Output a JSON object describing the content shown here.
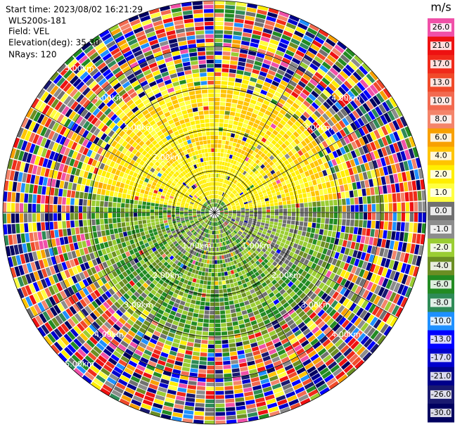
{
  "info": {
    "start_time": "Start time: 2023/08/02 16:21:29",
    "station": "WLS200s-181",
    "field": "Field: VEL",
    "elevation": "Elevation(deg): 35.30",
    "nrays": "NRays: 120"
  },
  "range_labels": [
    "5.00km",
    "4.00km",
    "3.00km",
    "2.00km",
    "4.00km",
    "3.00km",
    "1.00km",
    "2.00km",
    "3.00km",
    "4.00km",
    "5.00km",
    "1.00km",
    "2.00km",
    "3.00km",
    "4.00km"
  ],
  "colorbar": {
    "title": "m/s",
    "levels": [
      {
        "label": "26.0",
        "color": "#f050a8"
      },
      {
        "label": "21.0",
        "color": "#ee1111"
      },
      {
        "label": "17.0",
        "color": "#f02a1a"
      },
      {
        "label": "13.0",
        "color": "#f04a2a"
      },
      {
        "label": "10.0",
        "color": "#f26a50"
      },
      {
        "label": "8.0",
        "color": "#f4846a"
      },
      {
        "label": "6.0",
        "color": "#f8a000"
      },
      {
        "label": "4.0",
        "color": "#ffc400"
      },
      {
        "label": "2.0",
        "color": "#ffee00"
      },
      {
        "label": "1.0",
        "color": "#ffff40"
      },
      {
        "label": "0.0",
        "color": "#707070"
      },
      {
        "label": "-1.0",
        "color": "#8c8c8c"
      },
      {
        "label": "-2.0",
        "color": "#9acd32"
      },
      {
        "label": "-4.0",
        "color": "#6b8e23"
      },
      {
        "label": "-6.0",
        "color": "#228b22"
      },
      {
        "label": "-8.0",
        "color": "#2e8b57"
      },
      {
        "label": "-10.0",
        "color": "#1e90ff"
      },
      {
        "label": "-13.0",
        "color": "#0000ff"
      },
      {
        "label": "-17.0",
        "color": "#0000cd"
      },
      {
        "label": "-21.0",
        "color": "#00008b"
      },
      {
        "label": "-26.0",
        "color": "#191970"
      },
      {
        "label": "-30.0",
        "color": "#000060"
      }
    ]
  }
}
